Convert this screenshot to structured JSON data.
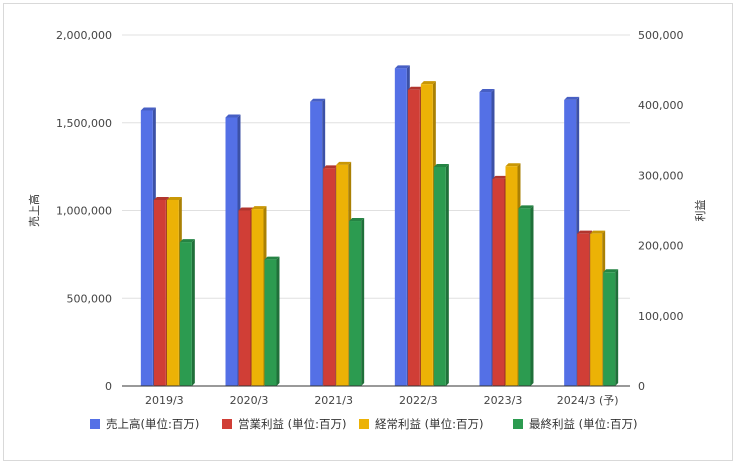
{
  "chart_data": {
    "type": "bar",
    "categories": [
      "2019/3",
      "2020/3",
      "2021/3",
      "2022/3",
      "2023/3",
      "2024/3 (予)"
    ],
    "series": [
      {
        "name": "売上高(単位:百万)",
        "axis": "left",
        "color": "#5470e6",
        "values": [
          1570000,
          1530000,
          1620000,
          1810000,
          1675000,
          1630000
        ]
      },
      {
        "name": "営業利益 (単位:百万)",
        "axis": "right",
        "color": "#d03e36",
        "values": [
          265000,
          250000,
          310000,
          422000,
          295000,
          217000
        ]
      },
      {
        "name": "経常利益 (単位:百万)",
        "axis": "right",
        "color": "#ecb206",
        "values": [
          265000,
          252000,
          315000,
          430000,
          313000,
          217000
        ]
      },
      {
        "name": "最終利益 (単位:百万)",
        "axis": "right",
        "color": "#2c9b50",
        "values": [
          205000,
          180000,
          235000,
          312000,
          253000,
          162000
        ]
      }
    ],
    "ylabel_left": "売上高",
    "ylabel_right": "利益",
    "ylim_left": [
      0,
      2000000
    ],
    "ylim_right": [
      0,
      500000
    ],
    "yticks_left": [
      "0",
      "500,000",
      "1,000,000",
      "1,500,000",
      "2,000,000"
    ],
    "yticks_right": [
      "0",
      "100,000",
      "200,000",
      "300,000",
      "400,000",
      "500,000"
    ],
    "grid": true,
    "legend_position": "bottom"
  }
}
